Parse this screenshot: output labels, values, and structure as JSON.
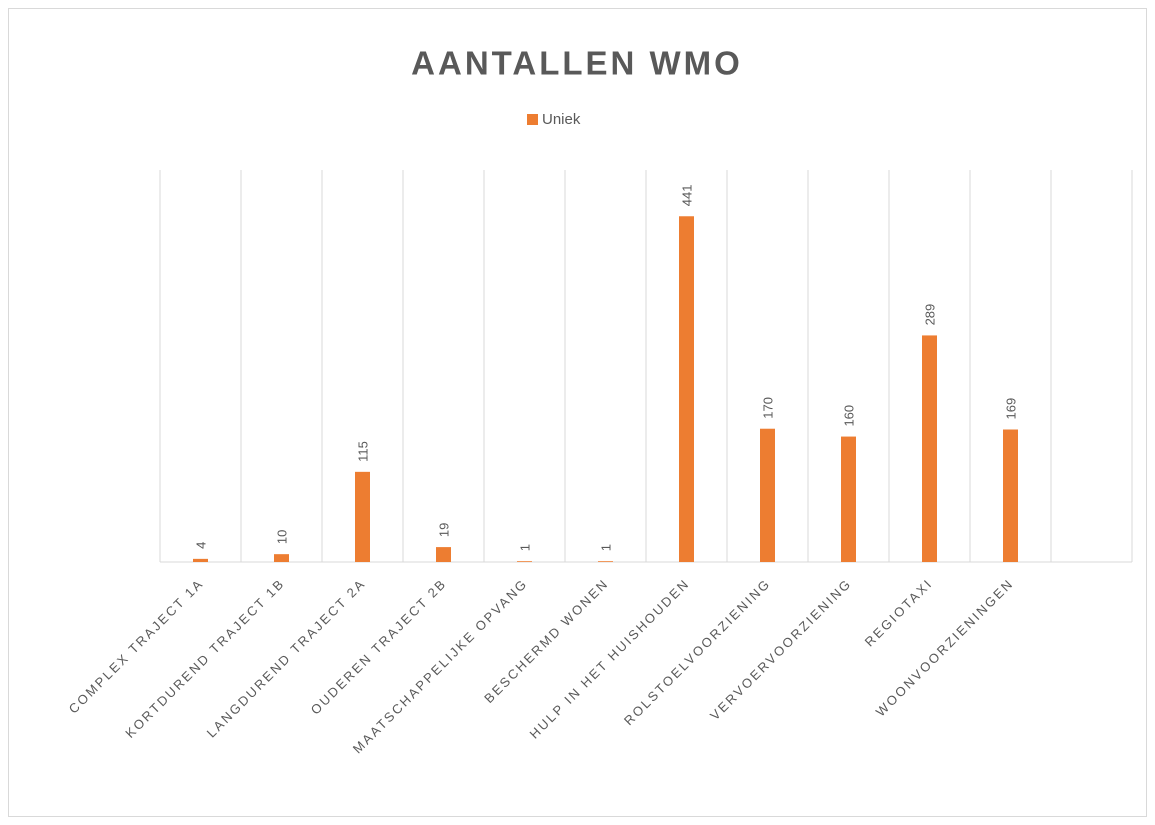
{
  "chart_data": {
    "type": "bar",
    "title": "AANTALLEN WMO",
    "categories": [
      "COMPLEX TRAJECT 1A",
      "KORTDUREND TRAJECT 1B",
      "LANGDUREND TRAJECT 2A",
      "OUDEREN TRAJECT 2B",
      "MAATSCHAPPELIJKE OPVANG",
      "BESCHERMD WONEN",
      "HULP IN HET HUISHOUDEN",
      "ROLSTOELVOORZIENING",
      "VERVOERVOORZIENING",
      "REGIOTAXI",
      "WOONVOORZIENINGEN",
      null
    ],
    "series": [
      {
        "name": "Uniek",
        "color": "#ed7d31",
        "values": [
          4,
          10,
          115,
          19,
          1,
          1,
          441,
          170,
          160,
          289,
          169,
          null
        ]
      }
    ],
    "ylim": [
      0,
      500
    ],
    "legend": "top"
  }
}
